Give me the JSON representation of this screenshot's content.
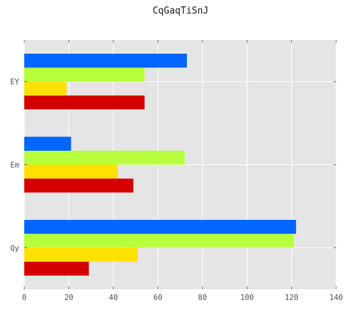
{
  "chart_data": {
    "type": "bar",
    "orientation": "horizontal",
    "title": "CqGaqTiSnJ",
    "categories": [
      "Qy",
      "Em",
      "EY"
    ],
    "series": [
      {
        "values": [
          29,
          49,
          54
        ],
        "color": "#d40000"
      },
      {
        "values": [
          51,
          42,
          19
        ],
        "color": "#ffe100"
      },
      {
        "values": [
          121,
          72,
          54
        ],
        "color": "#b8ff3c"
      },
      {
        "values": [
          122,
          21,
          73
        ],
        "color": "#0066ff"
      }
    ],
    "xticks": [
      0,
      20,
      40,
      60,
      80,
      100,
      120,
      140
    ],
    "xlim": [
      0,
      140
    ],
    "grid": true,
    "background": "#e5e5e5"
  }
}
